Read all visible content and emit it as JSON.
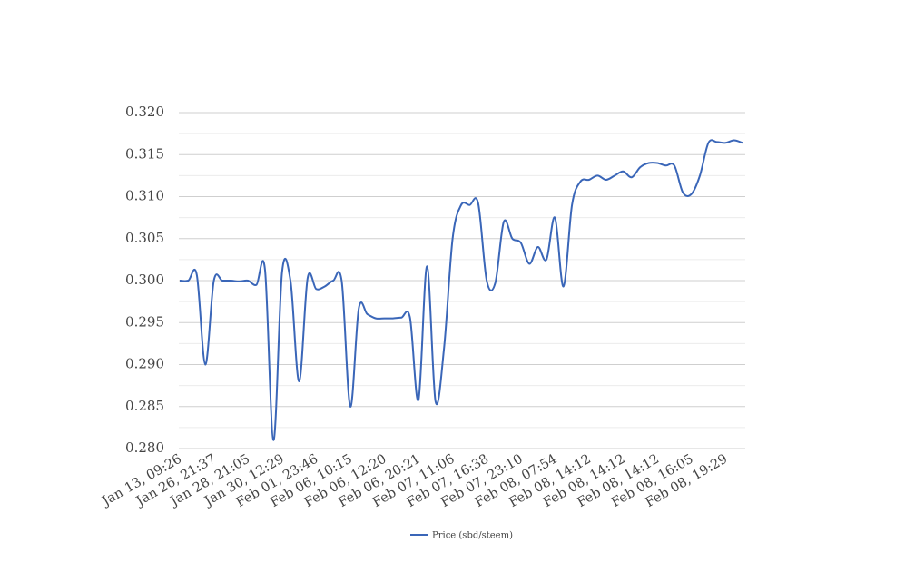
{
  "chart_data": {
    "type": "line",
    "categories": [
      "Jan 13, 09:26",
      null,
      null,
      null,
      "Jan 26, 21:37",
      null,
      null,
      null,
      "Jan 28, 21:05",
      null,
      null,
      null,
      "Jan 30, 12:29",
      null,
      null,
      null,
      "Feb 01, 23:46",
      null,
      null,
      null,
      "Feb 06, 10:15",
      null,
      null,
      null,
      "Feb 06, 12:20",
      null,
      null,
      null,
      "Feb 06, 20:21",
      null,
      null,
      null,
      "Feb 07, 11:06",
      null,
      null,
      null,
      "Feb 07, 16:38",
      null,
      null,
      null,
      "Feb 07, 23:10",
      null,
      null,
      null,
      "Feb 08, 07:54",
      null,
      null,
      null,
      "Feb 08, 14:12",
      null,
      null,
      null,
      "Feb 08, 14:12",
      null,
      null,
      null,
      "Feb 08, 14:12",
      null,
      null,
      null,
      "Feb 08, 16:05",
      null,
      null,
      null,
      "Feb 08, 19:29",
      null,
      null
    ],
    "series": [
      {
        "name": "Price (sbd/steem)",
        "color": "#3a66b8",
        "values": [
          0.3,
          0.3,
          0.3007,
          0.29,
          0.3,
          0.3,
          0.3,
          0.2999,
          0.3,
          0.2995,
          0.3013,
          0.281,
          0.301,
          0.2999,
          0.288,
          0.3003,
          0.299,
          0.2993,
          0.3,
          0.2999,
          0.285,
          0.2967,
          0.296,
          0.2955,
          0.2955,
          0.2955,
          0.2956,
          0.2956,
          0.2858,
          0.3017,
          0.2856,
          0.292,
          0.305,
          0.309,
          0.309,
          0.3092,
          0.3,
          0.2997,
          0.307,
          0.305,
          0.3045,
          0.302,
          0.304,
          0.3025,
          0.3075,
          0.2993,
          0.309,
          0.3118,
          0.312,
          0.3125,
          0.312,
          0.3125,
          0.313,
          0.3123,
          0.3135,
          0.314,
          0.314,
          0.3137,
          0.3137,
          0.3105,
          0.3103,
          0.3125,
          0.3164,
          0.3165,
          0.3164,
          0.3167,
          0.3164
        ]
      }
    ],
    "ylim": [
      0.28,
      0.32
    ],
    "yticks": [
      {
        "value": 0.28,
        "label": "0.280"
      },
      {
        "value": 0.285,
        "label": "0.285"
      },
      {
        "value": 0.29,
        "label": "0.290"
      },
      {
        "value": 0.295,
        "label": "0.295"
      },
      {
        "value": 0.3,
        "label": "0.300"
      },
      {
        "value": 0.305,
        "label": "0.305"
      },
      {
        "value": 0.31,
        "label": "0.310"
      },
      {
        "value": 0.315,
        "label": "0.315"
      },
      {
        "value": 0.32,
        "label": "0.320"
      }
    ],
    "grid": true,
    "minor_grid": true,
    "legend": "bottom"
  }
}
